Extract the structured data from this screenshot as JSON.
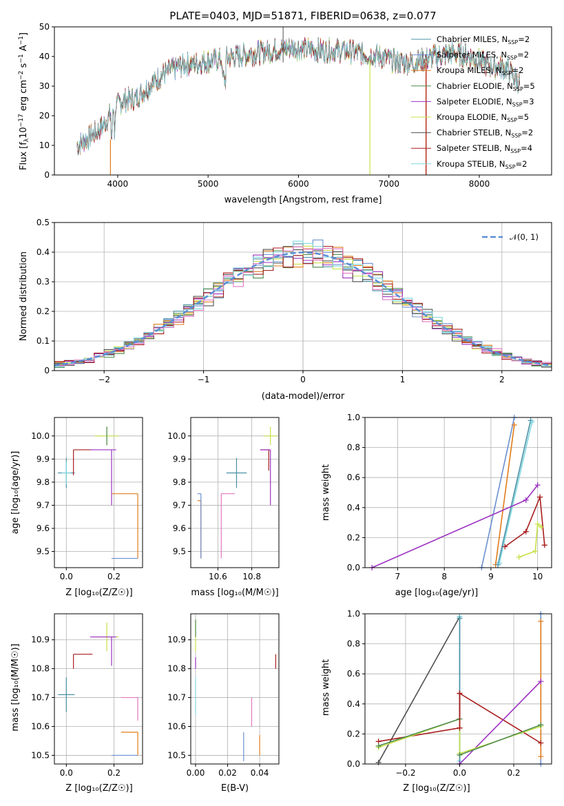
{
  "chart_data": [
    {
      "id": "spectrum",
      "type": "line",
      "title": "PLATE=0403, MJD=51871, FIBERID=0638, z=0.077",
      "xlabel": "wavelength [Angstrom, rest frame]",
      "ylabel": "Flux [fλ10⁻¹⁷ erg cm⁻² s⁻¹ A⁻¹]",
      "xlim": [
        3300,
        8800
      ],
      "ylim": [
        0,
        50
      ],
      "xticks": [
        4000,
        5000,
        6000,
        7000,
        8000
      ],
      "yticks": [
        0,
        10,
        20,
        30,
        40,
        50
      ],
      "grid": false,
      "legend_position": "top-right",
      "series": [
        {
          "name": "Chabrier MILES, N_SSP=2",
          "color": "#4a90a4"
        },
        {
          "name": "Salpeter MILES, N_SSP=2",
          "color": "#6a8fcf"
        },
        {
          "name": "Kroupa MILES, N_SSP=2",
          "color": "#e07b1a"
        },
        {
          "name": "Chabrier ELODIE, N_SSP=5",
          "color": "#4c8a4c"
        },
        {
          "name": "Salpeter ELODIE, N_SSP=3",
          "color": "#9b30c0"
        },
        {
          "name": "Kroupa ELODIE, N_SSP=5",
          "color": "#c8e04a"
        },
        {
          "name": "Chabrier STELIB, N_SSP=2",
          "color": "#505050"
        },
        {
          "name": "Salpeter STELIB, N_SSP=4",
          "color": "#a81c1c"
        },
        {
          "name": "Kroupa STELIB, N_SSP=2",
          "color": "#7fd6de"
        }
      ],
      "continuum": {
        "x": [
          3550,
          3700,
          3850,
          3950,
          4050,
          4200,
          4350,
          4500,
          4700,
          4900,
          5100,
          5300,
          5500,
          5700,
          5900,
          6100,
          6300,
          6500,
          6700,
          6900,
          7100,
          7300,
          7500,
          7700,
          7900,
          8100,
          8300,
          8450
        ],
        "y": [
          10,
          13,
          17,
          22,
          25,
          26,
          30,
          34,
          37,
          38,
          39,
          40,
          41,
          42,
          43,
          42.5,
          42,
          42,
          41,
          40,
          38,
          38,
          40,
          41,
          40,
          37,
          36,
          31
        ]
      }
    },
    {
      "id": "residuals",
      "type": "histogram",
      "xlabel": "(data-model)/error",
      "ylabel": "Normed distribution",
      "xlim": [
        -2.5,
        2.5
      ],
      "ylim": [
        0,
        0.5
      ],
      "xticks": [
        -2,
        -1,
        0,
        1,
        2
      ],
      "yticks": [
        0.0,
        0.1,
        0.2,
        0.3,
        0.4,
        0.5
      ],
      "grid": true,
      "legend_position": "top-right",
      "reference_curve": {
        "name": "𝒩(0, 1)",
        "color": "#5b8ed6",
        "style": "dashed"
      },
      "bin_width": 0.1,
      "hist_colors": [
        "#4a90a4",
        "#6a8fcf",
        "#e07b1a",
        "#4c8a4c",
        "#9b30c0",
        "#c8e04a",
        "#505050",
        "#a81c1c",
        "#7fd6de",
        "#e377c2"
      ]
    },
    {
      "id": "age_vs_Z",
      "type": "errorbar",
      "xlabel": "Z [log₁₀(Z/Z☉)]",
      "ylabel": "age  [log₁₀(age/yr)]",
      "xlim": [
        -0.05,
        0.32
      ],
      "ylim": [
        9.43,
        10.08
      ],
      "xticks": [
        0.0,
        0.2
      ],
      "yticks": [
        9.5,
        9.6,
        9.7,
        9.8,
        9.9,
        10.0
      ],
      "points": [
        {
          "x": 0.0,
          "xerr": 0.035,
          "y": 9.84,
          "yerr": 0.065,
          "color": "#4a90a4"
        },
        {
          "x": 0.0,
          "xerr": 0.02,
          "y": 9.84,
          "yerr": 0.05,
          "color": "#7fd6de"
        },
        {
          "x": 0.03,
          "xerr": 0.0,
          "y": 9.94,
          "yerr": 0.0,
          "color": "#a81c1c",
          "cross": [
            0.03,
            0.11,
            9.83,
            9.94
          ]
        },
        {
          "x": 0.17,
          "xerr": 0.05,
          "y": 10.0,
          "yerr": 0.04,
          "color": "#c8e04a"
        },
        {
          "x": 0.17,
          "xerr": 0.0,
          "y": 10.0,
          "yerr": 0.04,
          "color": "#4c8a4c"
        },
        {
          "x": 0.19,
          "xerr": 0.06,
          "y": 9.89,
          "yerr": 0.0,
          "color": "#9b30c0",
          "cross": [
            0.1,
            0.21,
            9.7,
            9.94
          ]
        },
        {
          "x": 0.3,
          "xerr": 0.0,
          "y": 9.47,
          "yerr": 0.0,
          "color": "#e07b1a",
          "cross": [
            0.19,
            0.3,
            9.47,
            9.75
          ]
        },
        {
          "x": 0.3,
          "xerr": 0.0,
          "y": 9.47,
          "yerr": 0.0,
          "color": "#6a8fcf",
          "cross": [
            0.19,
            0.3,
            9.47,
            9.47
          ]
        }
      ]
    },
    {
      "id": "age_vs_mass",
      "type": "errorbar",
      "xlabel": "mass [log₁₀(M/M☉)]",
      "xlim": [
        10.44,
        10.96
      ],
      "ylim": [
        9.43,
        10.08
      ],
      "xticks": [
        10.6,
        10.8
      ],
      "yticks": [
        9.5,
        9.6,
        9.7,
        9.8,
        9.9,
        10.0
      ],
      "points": [
        {
          "x": 10.71,
          "xerr": 0.06,
          "y": 9.84,
          "yerr": 0.065,
          "color": "#4a90a4"
        },
        {
          "x": 10.91,
          "xerr": 0.04,
          "y": 10.0,
          "yerr": 0.04,
          "color": "#c8e04a"
        },
        {
          "x": 10.9,
          "xerr": 0.0,
          "y": 9.93,
          "yerr": 0.0,
          "color": "#a81c1c",
          "cross": [
            10.85,
            10.9,
            9.85,
            9.94
          ]
        },
        {
          "x": 10.91,
          "xerr": 0.04,
          "y": 9.89,
          "yerr": 0.0,
          "color": "#9b30c0",
          "cross": [
            10.85,
            10.91,
            9.7,
            9.94
          ]
        },
        {
          "x": 10.5,
          "xerr": 0.0,
          "y": 9.47,
          "yerr": 0.0,
          "color": "#e07b1a",
          "cross": [
            10.48,
            10.5,
            9.47,
            9.72
          ]
        },
        {
          "x": 10.5,
          "xerr": 0.0,
          "y": 9.47,
          "yerr": 0.0,
          "color": "#6a8fcf",
          "cross": [
            10.48,
            10.5,
            9.47,
            9.75
          ]
        },
        {
          "x": 10.62,
          "xerr": 0.0,
          "y": 9.47,
          "yerr": 0.0,
          "color": "#e377c2",
          "cross": [
            10.62,
            10.7,
            9.47,
            9.75
          ]
        }
      ]
    },
    {
      "id": "weight_vs_age",
      "type": "line",
      "xlabel": "age  [log₁₀(age/yr)]",
      "ylabel": "mass weight",
      "xlim": [
        6.3,
        10.3
      ],
      "ylim": [
        0,
        1
      ],
      "xticks": [
        7,
        8,
        9,
        10
      ],
      "yticks": [
        0.0,
        0.2,
        0.4,
        0.6,
        0.8,
        1.0
      ],
      "grid": true,
      "series": [
        {
          "color": "#6a8fcf",
          "x": [
            8.8,
            9.5
          ],
          "y": [
            0.0,
            1.0
          ]
        },
        {
          "color": "#e07b1a",
          "x": [
            9.1,
            9.5
          ],
          "y": [
            0.02,
            0.95
          ]
        },
        {
          "color": "#4a90a4",
          "x": [
            9.15,
            9.85
          ],
          "y": [
            0.02,
            0.98
          ]
        },
        {
          "color": "#7fd6de",
          "x": [
            9.18,
            9.88
          ],
          "y": [
            0.03,
            0.97
          ]
        },
        {
          "color": "#9b30c0",
          "x": [
            6.45,
            9.75,
            10.0
          ],
          "y": [
            0.0,
            0.45,
            0.55
          ]
        },
        {
          "color": "#a81c1c",
          "x": [
            9.3,
            9.75,
            10.05,
            10.15
          ],
          "y": [
            0.14,
            0.24,
            0.47,
            0.15
          ]
        },
        {
          "color": "#c8e04a",
          "x": [
            9.6,
            9.95,
            10.0,
            10.08
          ],
          "y": [
            0.07,
            0.11,
            0.29,
            0.27
          ]
        }
      ]
    },
    {
      "id": "mass_vs_Z",
      "type": "errorbar",
      "xlabel": "Z [log₁₀(Z/Z☉)]",
      "ylabel": "mass [log₁₀(M/M☉)]",
      "xlim": [
        -0.05,
        0.32
      ],
      "ylim": [
        10.47,
        10.99
      ],
      "xticks": [
        0.0,
        0.2
      ],
      "yticks": [
        10.5,
        10.6,
        10.7,
        10.8,
        10.9
      ],
      "points": [
        {
          "x": 0.0,
          "xerr": 0.035,
          "y": 10.71,
          "yerr": 0.06,
          "color": "#4a90a4"
        },
        {
          "x": 0.03,
          "xerr": 0.0,
          "y": 10.85,
          "yerr": 0.0,
          "color": "#a81c1c",
          "cross": [
            0.03,
            0.11,
            10.8,
            10.85
          ]
        },
        {
          "x": 0.17,
          "xerr": 0.05,
          "y": 10.91,
          "yerr": 0.05,
          "color": "#c8e04a"
        },
        {
          "x": 0.19,
          "xerr": 0.06,
          "y": 10.91,
          "yerr": 0.0,
          "color": "#9b30c0",
          "cross": [
            0.1,
            0.21,
            10.81,
            10.91
          ]
        },
        {
          "x": 0.3,
          "xerr": 0.0,
          "y": 10.5,
          "yerr": 0.0,
          "color": "#e07b1a",
          "cross": [
            0.23,
            0.3,
            10.5,
            10.58
          ]
        },
        {
          "x": 0.3,
          "xerr": 0.0,
          "y": 10.5,
          "yerr": 0.0,
          "color": "#6a8fcf",
          "cross": [
            0.19,
            0.3,
            10.5,
            10.5
          ]
        },
        {
          "x": 0.3,
          "xerr": 0.0,
          "y": 10.62,
          "yerr": 0.0,
          "color": "#e377c2",
          "cross": [
            0.23,
            0.3,
            10.62,
            10.7
          ]
        }
      ]
    },
    {
      "id": "mass_vs_EBV",
      "type": "errorbar",
      "xlabel": "E(B-V)",
      "xlim": [
        -0.003,
        0.052
      ],
      "ylim": [
        10.47,
        10.99
      ],
      "xticks": [
        0.0,
        0.02,
        0.04
      ],
      "yticks": [
        10.5,
        10.6,
        10.7,
        10.8,
        10.9
      ],
      "points": [
        {
          "x": 0.0,
          "y": 10.71,
          "y0": 10.64,
          "y1": 10.77,
          "color": "#7fd6de"
        },
        {
          "x": 0.0,
          "y": 10.9,
          "y0": 10.86,
          "y1": 10.97,
          "color": "#c8e04a"
        },
        {
          "x": 0.0,
          "y": 10.8,
          "y0": 10.8,
          "y1": 10.84,
          "color": "#9b30c0"
        },
        {
          "x": 0.0,
          "y": 10.94,
          "y0": 10.91,
          "y1": 10.97,
          "color": "#4c8a4c"
        },
        {
          "x": 0.03,
          "y": 10.5,
          "y0": 10.48,
          "y1": 10.58,
          "color": "#6a8fcf"
        },
        {
          "x": 0.04,
          "y": 10.5,
          "y0": 10.5,
          "y1": 10.57,
          "color": "#e07b1a"
        },
        {
          "x": 0.035,
          "y": 10.62,
          "y0": 10.6,
          "y1": 10.7,
          "color": "#e377c2"
        },
        {
          "x": 0.05,
          "y": 10.82,
          "y0": 10.8,
          "y1": 10.85,
          "color": "#a81c1c"
        }
      ]
    },
    {
      "id": "weight_vs_Z",
      "type": "line",
      "xlabel": "Z [log₁₀(Z/Z☉)]",
      "ylabel": "mass weight",
      "xlim": [
        -0.35,
        0.34
      ],
      "ylim": [
        0,
        1
      ],
      "xticks": [
        -0.2,
        0.0,
        0.2
      ],
      "yticks": [
        0.0,
        0.2,
        0.4,
        0.6,
        0.8,
        1.0
      ],
      "grid": true,
      "series": [
        {
          "color": "#505050",
          "x": [
            -0.3,
            0.0
          ],
          "y": [
            0.01,
            0.98
          ]
        },
        {
          "color": "#7fd6de",
          "x": [
            0.0,
            0.0
          ],
          "y": [
            0.02,
            0.98
          ]
        },
        {
          "color": "#4a90a4",
          "x": [
            0.0,
            0.0
          ],
          "y": [
            0.0,
            0.97
          ]
        },
        {
          "color": "#6a8fcf",
          "x": [
            0.3,
            0.3
          ],
          "y": [
            0.0,
            1.0
          ]
        },
        {
          "color": "#e07b1a",
          "x": [
            0.3,
            0.3
          ],
          "y": [
            0.05,
            0.95
          ]
        },
        {
          "color": "#a81c1c",
          "x": [
            -0.3,
            0.0,
            0.0,
            0.3
          ],
          "y": [
            0.15,
            0.24,
            0.47,
            0.14
          ]
        },
        {
          "color": "#9b30c0",
          "x": [
            0.0,
            0.3
          ],
          "y": [
            0.0,
            0.55
          ]
        },
        {
          "color": "#c8e04a",
          "x": [
            -0.3,
            0.0,
            0.0,
            0.3
          ],
          "y": [
            0.11,
            0.3,
            0.07,
            0.25
          ]
        },
        {
          "color": "#4c8a4c",
          "x": [
            0.0,
            0.3
          ],
          "y": [
            0.06,
            0.26
          ]
        },
        {
          "color": "#4c8a4c",
          "x": [
            -0.3,
            0.0
          ],
          "y": [
            0.12,
            0.3
          ]
        },
        {
          "color": "#a81c1c",
          "x": [
            0.0,
            0.0
          ],
          "y": [
            0.24,
            0.47
          ]
        }
      ]
    }
  ]
}
